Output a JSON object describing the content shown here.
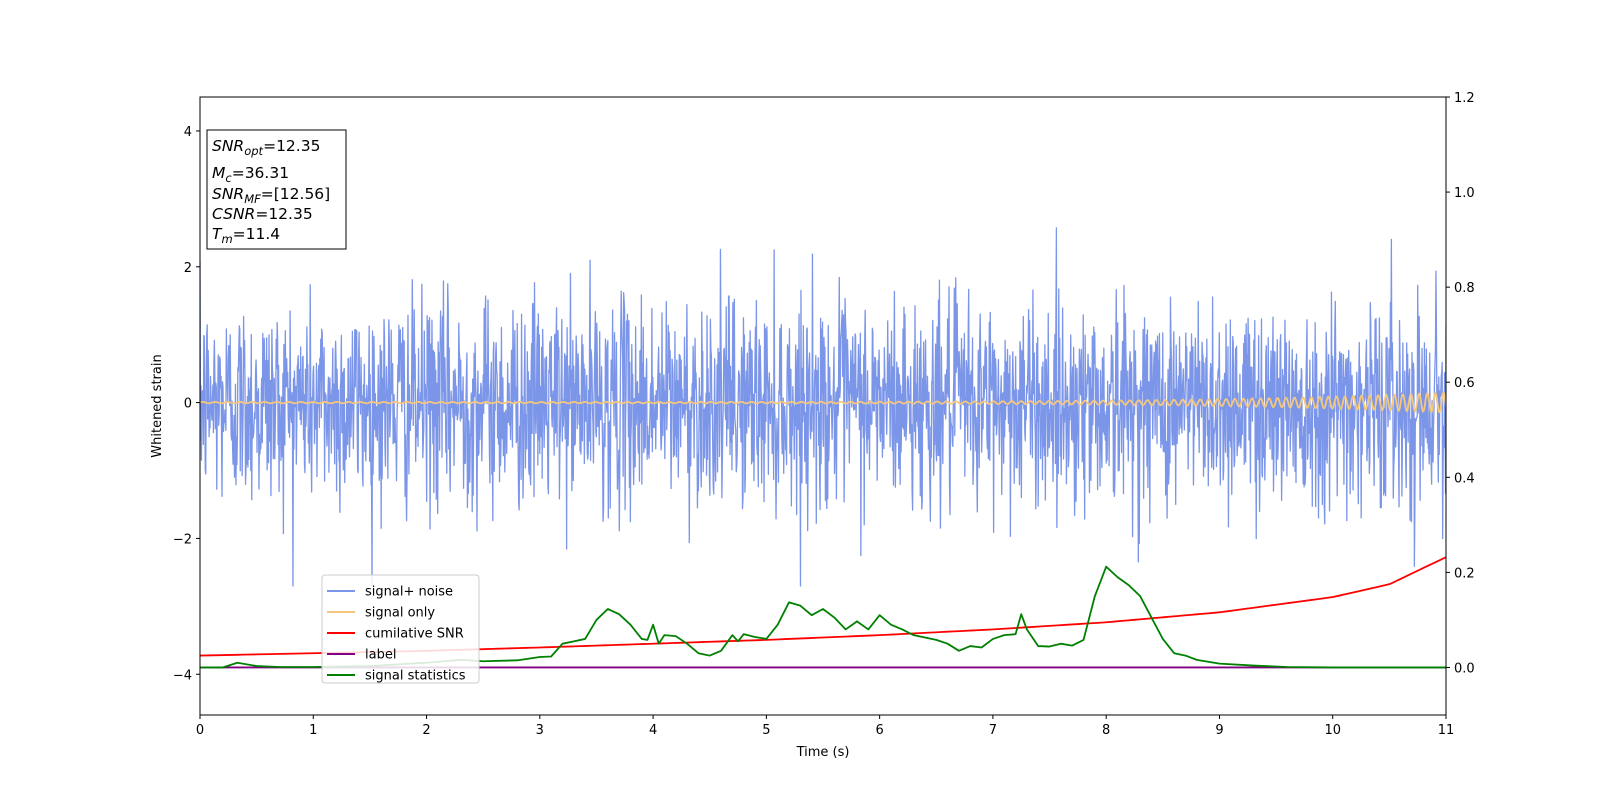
{
  "chart_data": {
    "type": "line",
    "xlabel": "Time (s)",
    "ylabel": "Whitened strain",
    "xlim": [
      0,
      11
    ],
    "ylim": [
      -4.6,
      4.5
    ],
    "y2lim": [
      -0.1,
      1.2
    ],
    "x_ticks": [
      0,
      1,
      2,
      3,
      4,
      5,
      6,
      7,
      8,
      9,
      10,
      11
    ],
    "y_ticks": [
      -4,
      -2,
      0,
      2,
      4
    ],
    "y2_ticks": [
      "0.0",
      "0.2",
      "0.4",
      "0.6",
      "0.8",
      "1.0",
      "1.2"
    ],
    "grid": false,
    "legend_position": "lower-left",
    "annotation": {
      "lines": [
        {
          "main": "SNR",
          "sub": "opt",
          "value": "=12.35"
        },
        {
          "main": "M",
          "sub": "c",
          "value": "=36.31"
        },
        {
          "main": "SNR",
          "sub": "MF",
          "value": "=[12.56]"
        },
        {
          "main": "CSNR",
          "sub": "",
          "value": "=12.35"
        },
        {
          "main": "T",
          "sub": "m",
          "value": "=11.4"
        }
      ]
    },
    "series": [
      {
        "name": "signal+ noise",
        "color": "#7b95e8",
        "axis": "left",
        "description_amplitude": 0.75,
        "peak_range": [
          -2.7,
          2.8
        ]
      },
      {
        "name": "signal only",
        "color": "#f5c77e",
        "axis": "left",
        "amplitude_start": 0.01,
        "amplitude_end": 0.15,
        "freq_start_hz": 9,
        "freq_end_hz": 14
      },
      {
        "name": "cumilative SNR",
        "color": "#ff0000",
        "axis": "right",
        "x": [
          0,
          1,
          2,
          3,
          4,
          5,
          6,
          7,
          8,
          9,
          10,
          10.5,
          11
        ],
        "y": [
          0.025,
          0.03,
          0.035,
          0.042,
          0.05,
          0.058,
          0.068,
          0.08,
          0.095,
          0.116,
          0.148,
          0.175,
          0.232
        ]
      },
      {
        "name": "label",
        "color": "#800080",
        "axis": "right",
        "x": [
          0,
          11
        ],
        "y": [
          0.0,
          0.0
        ]
      },
      {
        "name": "signal statistics",
        "color": "#008000",
        "axis": "right",
        "x": [
          0,
          0.2,
          0.33,
          0.5,
          0.7,
          1.0,
          1.5,
          2.0,
          2.3,
          2.5,
          2.8,
          3.0,
          3.1,
          3.2,
          3.3,
          3.4,
          3.5,
          3.6,
          3.7,
          3.8,
          3.9,
          3.95,
          4.0,
          4.05,
          4.1,
          4.2,
          4.3,
          4.4,
          4.5,
          4.6,
          4.7,
          4.75,
          4.8,
          4.9,
          5.0,
          5.1,
          5.2,
          5.3,
          5.4,
          5.5,
          5.6,
          5.7,
          5.8,
          5.9,
          6.0,
          6.1,
          6.2,
          6.3,
          6.4,
          6.5,
          6.6,
          6.7,
          6.8,
          6.9,
          7.0,
          7.1,
          7.2,
          7.25,
          7.3,
          7.4,
          7.5,
          7.6,
          7.7,
          7.8,
          7.9,
          8.0,
          8.1,
          8.2,
          8.3,
          8.4,
          8.5,
          8.6,
          8.7,
          8.8,
          9.0,
          9.3,
          9.6,
          10,
          11
        ],
        "y": [
          0.0,
          0.0,
          0.01,
          0.003,
          0.001,
          0.001,
          0.003,
          0.01,
          0.016,
          0.013,
          0.015,
          0.022,
          0.023,
          0.05,
          0.055,
          0.06,
          0.1,
          0.123,
          0.112,
          0.09,
          0.06,
          0.058,
          0.09,
          0.05,
          0.068,
          0.066,
          0.05,
          0.03,
          0.025,
          0.035,
          0.068,
          0.055,
          0.07,
          0.064,
          0.06,
          0.09,
          0.137,
          0.13,
          0.11,
          0.123,
          0.105,
          0.08,
          0.097,
          0.08,
          0.11,
          0.09,
          0.08,
          0.068,
          0.063,
          0.058,
          0.05,
          0.035,
          0.045,
          0.042,
          0.06,
          0.068,
          0.07,
          0.112,
          0.08,
          0.045,
          0.044,
          0.05,
          0.046,
          0.058,
          0.15,
          0.212,
          0.19,
          0.173,
          0.15,
          0.105,
          0.06,
          0.03,
          0.025,
          0.016,
          0.008,
          0.004,
          0.001,
          0.0,
          0.0
        ]
      }
    ]
  }
}
